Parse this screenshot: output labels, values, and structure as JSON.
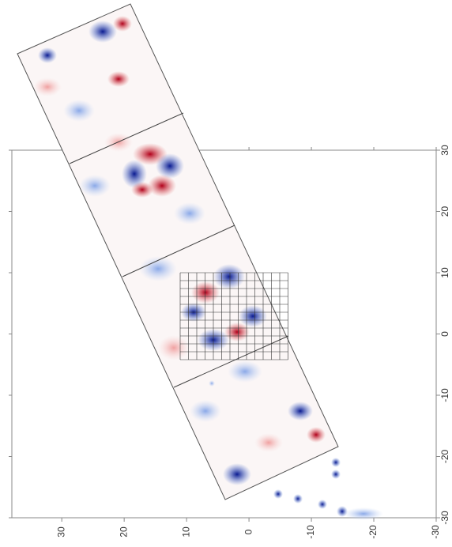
{
  "chart_data": {
    "type": "image",
    "xlim": [
      38,
      -30
    ],
    "xticks": [
      30,
      20,
      10,
      0,
      -10,
      -20,
      -30
    ],
    "ylim": [
      30,
      -30
    ],
    "yticks": [
      30,
      20,
      10,
      0,
      -10,
      -20,
      -30
    ]
  }
}
